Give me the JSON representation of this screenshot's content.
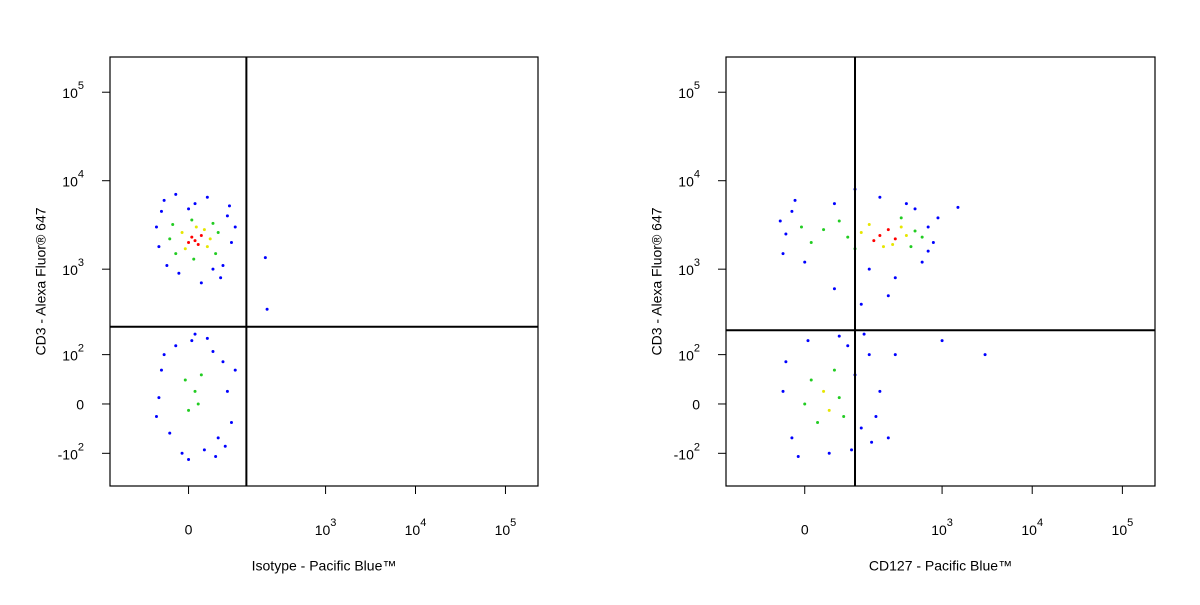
{
  "chart_data": [
    {
      "type": "scatter",
      "scale": "biexponential",
      "xlabel": "Isotype - Pacific Blue™",
      "ylabel": "CD3 - Alexa Fluor® 647",
      "xlim": [
        -220,
        230000
      ],
      "ylim": [
        -250,
        250000
      ],
      "xticks": [
        0,
        {
          "value": 1000,
          "label": "10^3"
        },
        {
          "value": 10000,
          "label": "10^4"
        },
        {
          "value": 100000,
          "label": "10^5"
        }
      ],
      "yticks": [
        {
          "value": -100,
          "label": "-10^2"
        },
        0,
        {
          "value": 100,
          "label": "10^2"
        },
        {
          "value": 1000,
          "label": "10^3"
        },
        {
          "value": 10000,
          "label": "10^4"
        },
        {
          "value": 100000,
          "label": "10^5"
        }
      ],
      "quadrant_x": 125,
      "quadrant_y": 220,
      "series": [
        {
          "color": "#0000ff",
          "x": [
            -45,
            70,
            80,
            -50,
            60,
            -35,
            10,
            30,
            -15,
            55,
            90,
            -55,
            20,
            -40,
            75,
            0,
            40,
            -20,
            210,
            220,
            -40,
            60,
            50,
            -30,
            5,
            25,
            -50,
            70,
            -20,
            40,
            -10,
            80,
            30,
            -45,
            65,
            0,
            90,
            -55,
            10,
            45
          ],
          "y": [
            4500,
            4000,
            2000,
            1800,
            1100,
            1100,
            5500,
            6500,
            900,
            800,
            3000,
            3000,
            700,
            6000,
            5200,
            4800,
            1000,
            7000,
            1350,
            350,
            100,
            80,
            -60,
            -50,
            150,
            -90,
            10,
            20,
            130,
            110,
            -100,
            -30,
            160,
            60,
            -80,
            -120,
            60,
            -20,
            180,
            -110
          ]
        },
        {
          "color": "#22cc22",
          "x": [
            -25,
            45,
            40,
            -20,
            5,
            50,
            -30,
            8,
            10,
            0,
            20,
            -5,
            15
          ],
          "y": [
            3200,
            1500,
            3300,
            1500,
            3600,
            2600,
            2200,
            1300,
            20,
            -10,
            50,
            40,
            0
          ]
        },
        {
          "color": "#e6e600",
          "x": [
            -10,
            30,
            25,
            -5,
            12,
            35
          ],
          "y": [
            2600,
            1800,
            2800,
            1700,
            3000,
            2200
          ]
        },
        {
          "color": "#ff0000",
          "x": [
            10,
            5,
            15,
            0,
            20
          ],
          "y": [
            2100,
            2300,
            1900,
            2000,
            2400
          ]
        }
      ]
    },
    {
      "type": "scatter",
      "scale": "biexponential",
      "xlabel": "CD127 - Pacific Blue™",
      "ylabel": "CD3 - Alexa Fluor® 647",
      "xlim": [
        -220,
        230000
      ],
      "ylim": [
        -250,
        250000
      ],
      "xticks": [
        0,
        {
          "value": 1000,
          "label": "10^3"
        },
        {
          "value": 10000,
          "label": "10^4"
        },
        {
          "value": 100000,
          "label": "10^5"
        }
      ],
      "yticks": [
        {
          "value": -100,
          "label": "-10^2"
        },
        0,
        {
          "value": 100,
          "label": "10^2"
        },
        {
          "value": 1000,
          "label": "10^3"
        },
        {
          "value": 10000,
          "label": "10^4"
        },
        {
          "value": 100000,
          "label": "10^5"
        }
      ],
      "quadrant_x": 100,
      "quadrant_y": 200,
      "series": [
        {
          "color": "#0000ff",
          "x": [
            -30,
            -20,
            700,
            800,
            -35,
            50,
            400,
            200,
            900,
            0,
            150,
            600,
            -15,
            300,
            500,
            100,
            -40,
            1500,
            250,
            50,
            700,
            120,
            -30,
            100,
            120,
            -20,
            150,
            80,
            -35,
            40,
            5,
            200,
            160,
            90,
            -10,
            250,
            60,
            300,
            180,
            3000,
            1000,
            130
          ],
          "y": [
            2500,
            4500,
            3000,
            2000,
            1500,
            5500,
            5500,
            6500,
            3800,
            1200,
            1000,
            1200,
            6000,
            800,
            4800,
            8000,
            3500,
            5000,
            500,
            600,
            1600,
            400,
            80,
            50,
            -40,
            -60,
            100,
            130,
            20,
            -100,
            150,
            20,
            -70,
            -90,
            -110,
            -60,
            170,
            100,
            -20,
            100,
            150,
            180
          ]
        },
        {
          "color": "#22cc22",
          "x": [
            80,
            30,
            500,
            60,
            450,
            10,
            350,
            100,
            -5,
            600,
            10,
            60,
            20,
            50,
            0,
            70
          ],
          "y": [
            2300,
            2800,
            2700,
            3500,
            1800,
            2000,
            3800,
            1700,
            3000,
            2300,
            40,
            10,
            -30,
            60,
            0,
            -20
          ]
        },
        {
          "color": "#e6e600",
          "x": [
            120,
            350,
            220,
            400,
            150,
            280,
            30,
            40
          ],
          "y": [
            2600,
            3000,
            1800,
            2400,
            3200,
            1900,
            20,
            -10
          ]
        },
        {
          "color": "#ff0000",
          "x": [
            200,
            250,
            170,
            300
          ],
          "y": [
            2400,
            2800,
            2100,
            2200
          ]
        }
      ]
    }
  ]
}
